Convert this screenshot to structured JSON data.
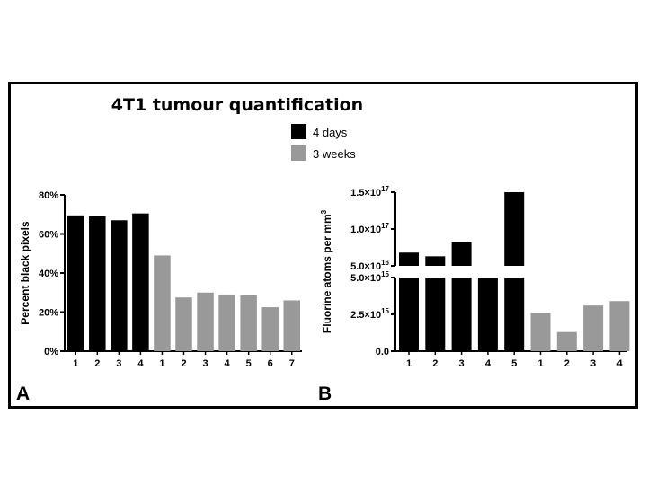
{
  "title": "4T1 tumour quantification",
  "colors": {
    "four_days": "#000000",
    "three_weeks": "#999999"
  },
  "legend": [
    {
      "label": "4 days",
      "color": "#000000"
    },
    {
      "label": "3 weeks",
      "color": "#999999"
    }
  ],
  "chart_data": [
    {
      "panel": "A",
      "type": "bar",
      "ylabel": "Percent black pixels",
      "ylim": [
        0,
        80
      ],
      "yticks": [
        0,
        20,
        40,
        60,
        80
      ],
      "ytick_labels": [
        "0%",
        "20%",
        "40%",
        "60%",
        "80%"
      ],
      "series": [
        {
          "name": "4 days",
          "categories": [
            "1",
            "2",
            "3",
            "4"
          ],
          "values": [
            69.5,
            69,
            67,
            70.5
          ]
        },
        {
          "name": "3 weeks",
          "categories": [
            "1",
            "2",
            "3",
            "4",
            "5",
            "6",
            "7"
          ],
          "values": [
            49,
            27.5,
            30,
            29,
            28.5,
            22.5,
            26
          ]
        }
      ]
    },
    {
      "panel": "B",
      "type": "bar",
      "ylabel": "Fluorine atoms per mm",
      "ylabel_sup": "3",
      "broken_axis": true,
      "lower_range": [
        0,
        5000000000000000.0
      ],
      "upper_range": [
        5e+16,
        1.5e+17
      ],
      "yticks_lower": [
        {
          "value": 0,
          "mantissa": "0.0",
          "exp": ""
        },
        {
          "value": 2500000000000000.0,
          "mantissa": "2.5×10",
          "exp": "15"
        },
        {
          "value": 5000000000000000.0,
          "mantissa": "5.0×10",
          "exp": "15"
        }
      ],
      "yticks_upper": [
        {
          "value": 5e+16,
          "mantissa": "5.0×10",
          "exp": "16"
        },
        {
          "value": 1e+17,
          "mantissa": "1.0×10",
          "exp": "17"
        },
        {
          "value": 1.5e+17,
          "mantissa": "1.5×10",
          "exp": "17"
        }
      ],
      "series": [
        {
          "name": "4 days",
          "categories": [
            "1",
            "2",
            "3",
            "4",
            "5"
          ],
          "values": [
            6.8e+16,
            6.3e+16,
            8.2e+16,
            5000000000000000.0,
            1.5e+17
          ]
        },
        {
          "name": "3 weeks",
          "categories": [
            "1",
            "2",
            "3",
            "4"
          ],
          "values": [
            2600000000000000.0,
            1300000000000000.0,
            3100000000000000.0,
            3400000000000000.0
          ]
        }
      ]
    }
  ]
}
